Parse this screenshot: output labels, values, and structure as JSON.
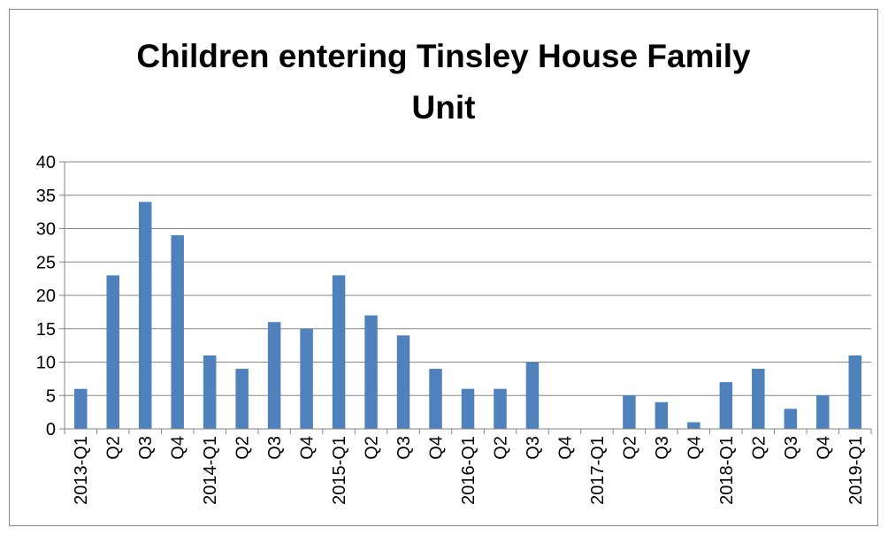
{
  "chart_data": {
    "type": "bar",
    "title": "Children entering Tinsley House Family Unit",
    "xlabel": "",
    "ylabel": "",
    "categories": [
      "2013-Q1",
      "Q2",
      "Q3",
      "Q4",
      "2014-Q1",
      "Q2",
      "Q3",
      "Q4",
      "2015-Q1",
      "Q2",
      "Q3",
      "Q4",
      "2016-Q1",
      "Q2",
      "Q3",
      "Q4",
      "2017-Q1",
      "Q2",
      "Q3",
      "Q4",
      "2018-Q1",
      "Q2",
      "Q3",
      "Q4",
      "2019-Q1"
    ],
    "values": [
      6,
      23,
      34,
      29,
      11,
      9,
      16,
      15,
      23,
      17,
      14,
      9,
      6,
      6,
      10,
      0,
      0,
      5,
      4,
      1,
      7,
      9,
      3,
      5,
      11
    ],
    "ylim": [
      0,
      40
    ],
    "yticks": [
      0,
      5,
      10,
      15,
      20,
      25,
      30,
      35,
      40
    ],
    "grid": true,
    "legend": "none",
    "colors": {
      "bar": "#4F81BD",
      "grid": "#868686",
      "axis": "#868686",
      "border": "#868686"
    }
  }
}
